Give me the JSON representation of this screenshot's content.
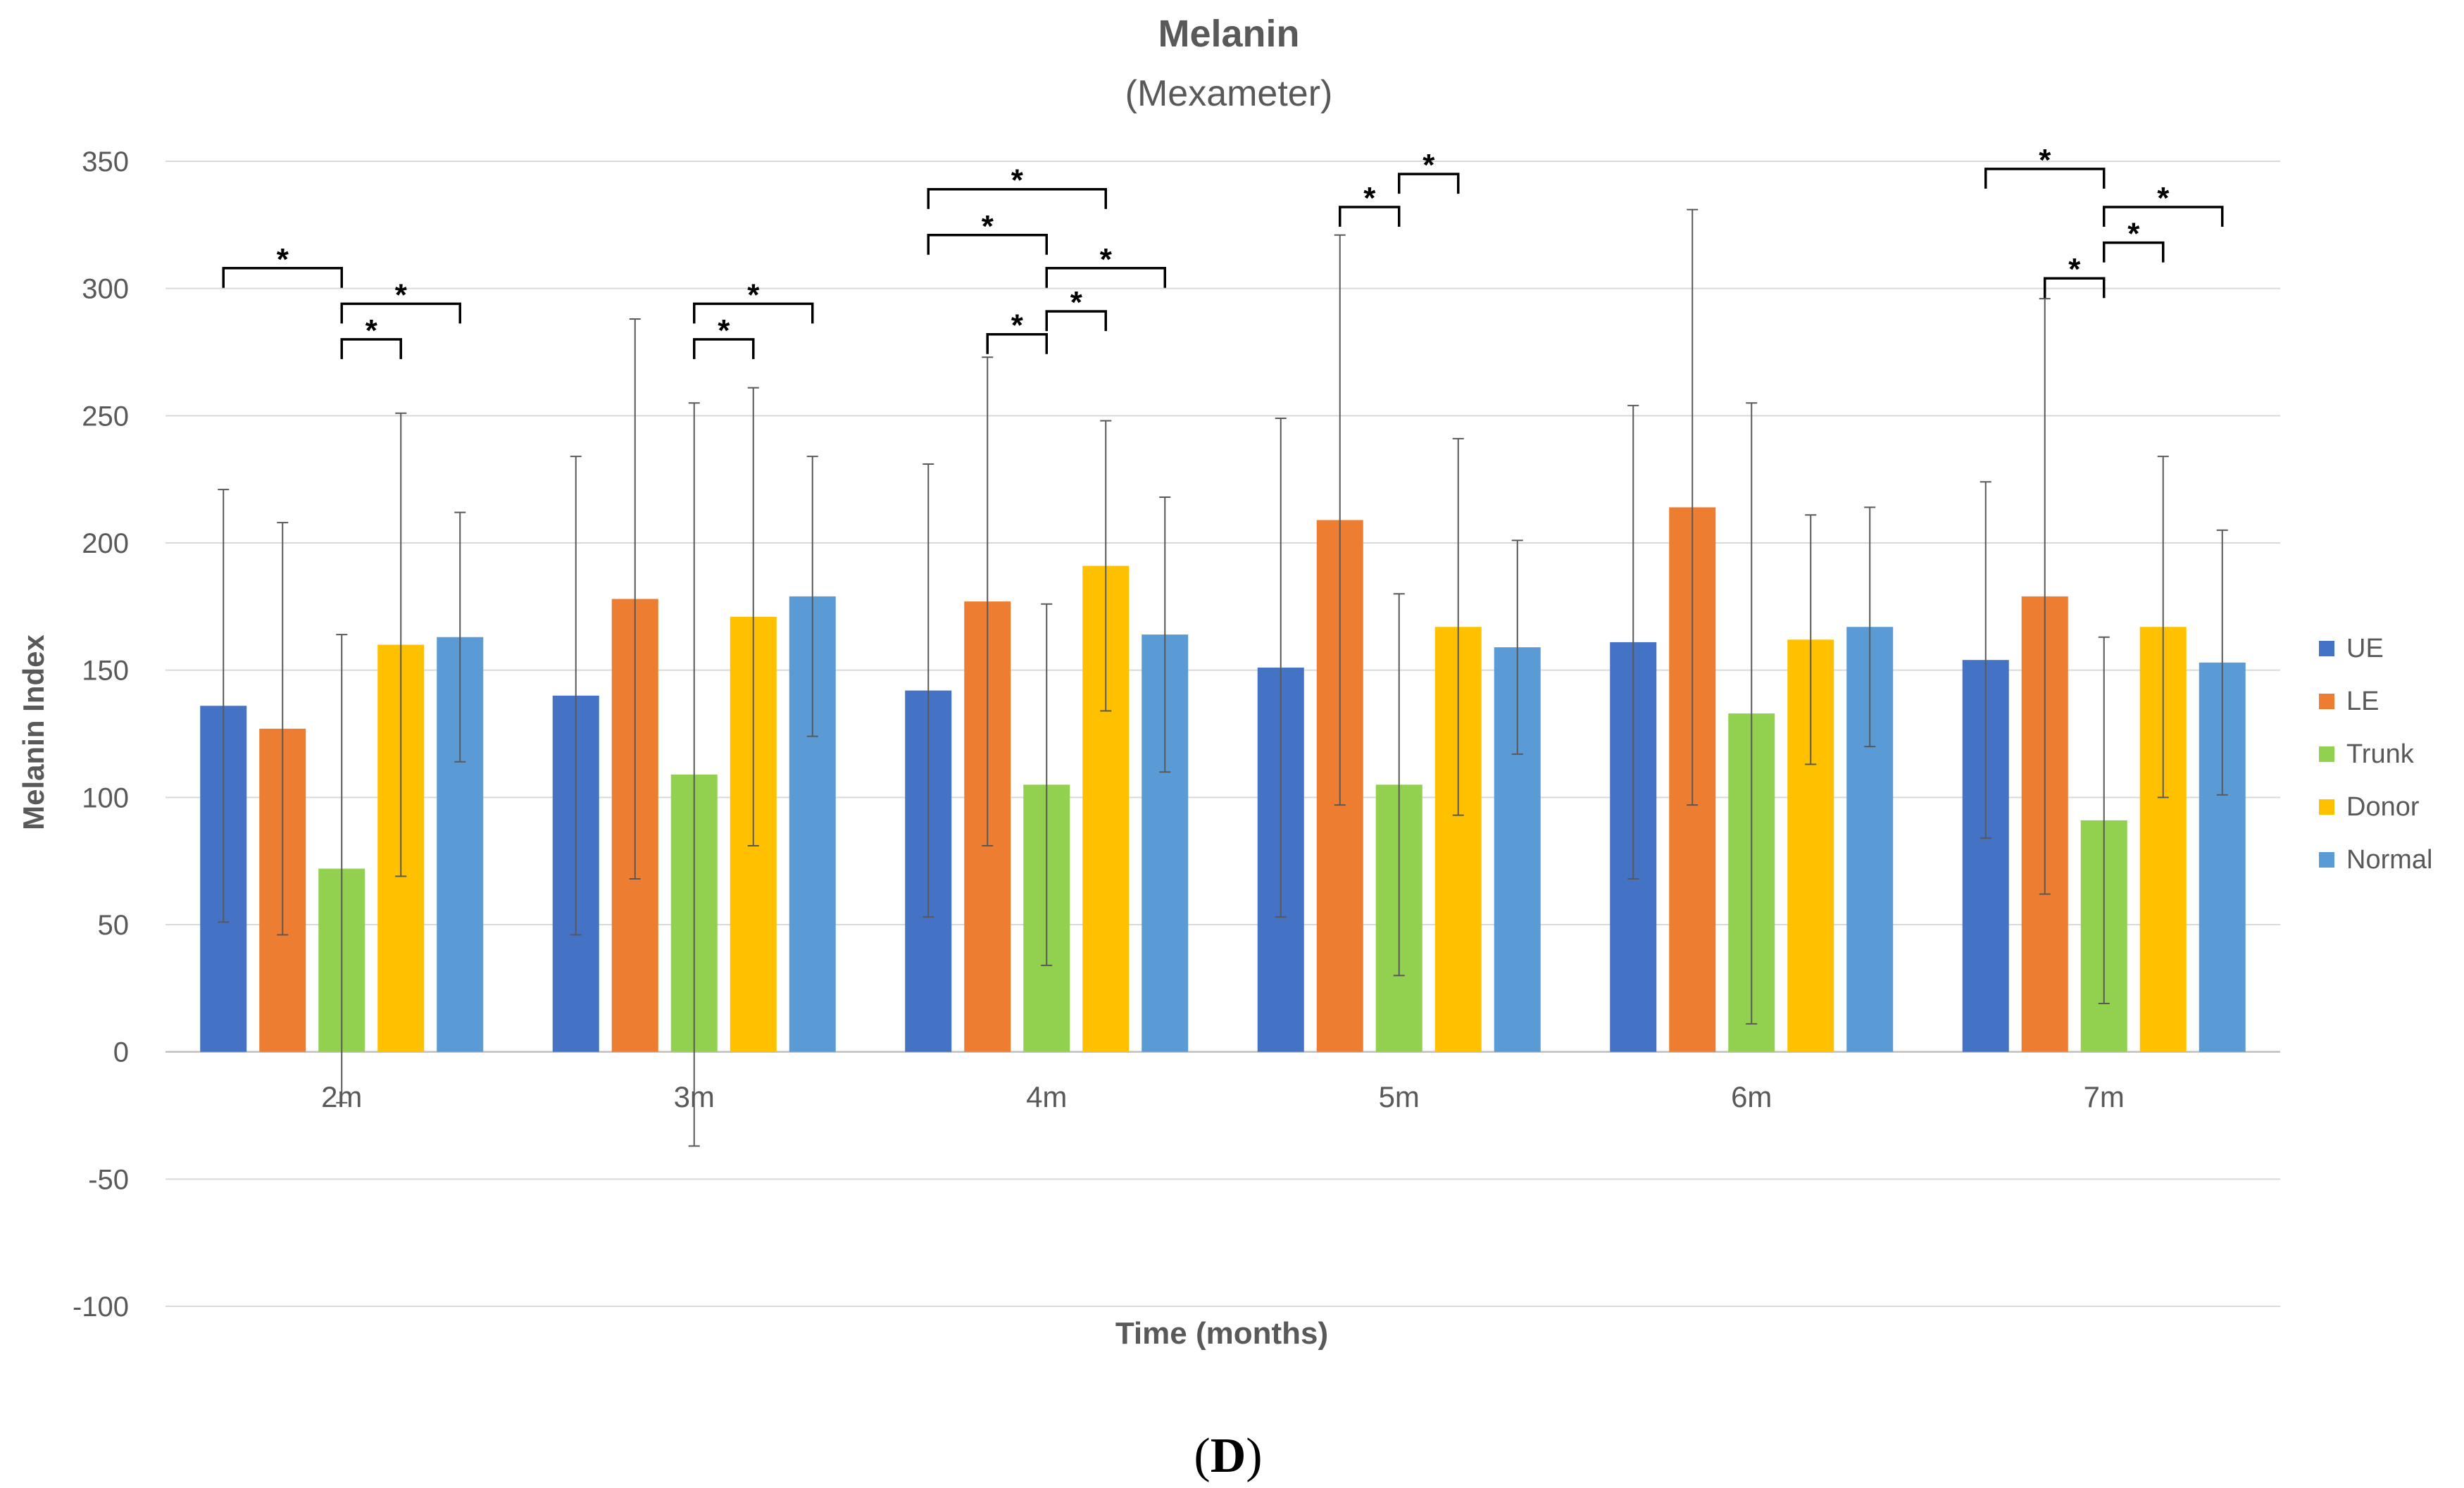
{
  "chart_data": {
    "type": "bar",
    "title": "Melanin",
    "subtitle": "(Mexameter)",
    "xlabel": "Time (months)",
    "ylabel": "Melanin Index",
    "panel_label": "D",
    "ylim": [
      -100,
      350
    ],
    "yticks": [
      -100,
      -50,
      0,
      50,
      100,
      150,
      200,
      250,
      300,
      350
    ],
    "ytick_labels": [
      "-100",
      "-50",
      "0",
      "50",
      "100",
      "150",
      "200",
      "250",
      "300",
      "350"
    ],
    "grid": true,
    "legend_position": "right",
    "categories": [
      "2m",
      "3m",
      "4m",
      "5m",
      "6m",
      "7m"
    ],
    "series": [
      {
        "name": "UE",
        "color": "#4472C4",
        "values": [
          136,
          140,
          142,
          151,
          161,
          154
        ],
        "errors": [
          85,
          94,
          89,
          98,
          93,
          70
        ]
      },
      {
        "name": "LE",
        "color": "#ED7D31",
        "values": [
          127,
          178,
          177,
          209,
          214,
          179
        ],
        "errors": [
          81,
          110,
          96,
          112,
          117,
          117
        ]
      },
      {
        "name": "Trunk",
        "color": "#92D050",
        "values": [
          72,
          109,
          105,
          105,
          133,
          91
        ],
        "errors": [
          92,
          146,
          71,
          75,
          122,
          72
        ]
      },
      {
        "name": "Donor",
        "color": "#FFC000",
        "values": [
          160,
          171,
          191,
          167,
          162,
          167
        ],
        "errors": [
          91,
          90,
          57,
          74,
          49,
          67
        ]
      },
      {
        "name": "Normal",
        "color": "#5B9BD5",
        "values": [
          163,
          179,
          164,
          159,
          167,
          153
        ],
        "errors": [
          49,
          55,
          54,
          42,
          47,
          52
        ]
      }
    ],
    "significance": [
      {
        "category": "2m",
        "from": 0,
        "to": 2,
        "level": 308,
        "label": "*"
      },
      {
        "category": "2m",
        "from": 2,
        "to": 4,
        "level": 294,
        "label": "*"
      },
      {
        "category": "2m",
        "from": 2,
        "to": 3,
        "level": 280,
        "label": "*"
      },
      {
        "category": "3m",
        "from": 2,
        "to": 4,
        "level": 294,
        "label": "*"
      },
      {
        "category": "3m",
        "from": 2,
        "to": 3,
        "level": 280,
        "label": "*"
      },
      {
        "category": "4m",
        "from": 0,
        "to": 3,
        "level": 339,
        "label": "*"
      },
      {
        "category": "4m",
        "from": 0,
        "to": 2,
        "level": 321,
        "label": "*"
      },
      {
        "category": "4m",
        "from": 2,
        "to": 4,
        "level": 308,
        "label": "*"
      },
      {
        "category": "4m",
        "from": 2,
        "to": 3,
        "level": 291,
        "label": "*"
      },
      {
        "category": "4m",
        "from": 1,
        "to": 2,
        "level": 282,
        "label": "*"
      },
      {
        "category": "5m",
        "from": 1,
        "to": 2,
        "level": 332,
        "label": "*"
      },
      {
        "category": "5m",
        "from": 2,
        "to": 3,
        "level": 345,
        "label": "*"
      },
      {
        "category": "7m",
        "from": 0,
        "to": 2,
        "level": 347,
        "label": "*"
      },
      {
        "category": "7m",
        "from": 2,
        "to": 4,
        "level": 332,
        "label": "*"
      },
      {
        "category": "7m",
        "from": 2,
        "to": 3,
        "level": 318,
        "label": "*"
      },
      {
        "category": "7m",
        "from": 1,
        "to": 2,
        "level": 304,
        "label": "*"
      }
    ]
  }
}
